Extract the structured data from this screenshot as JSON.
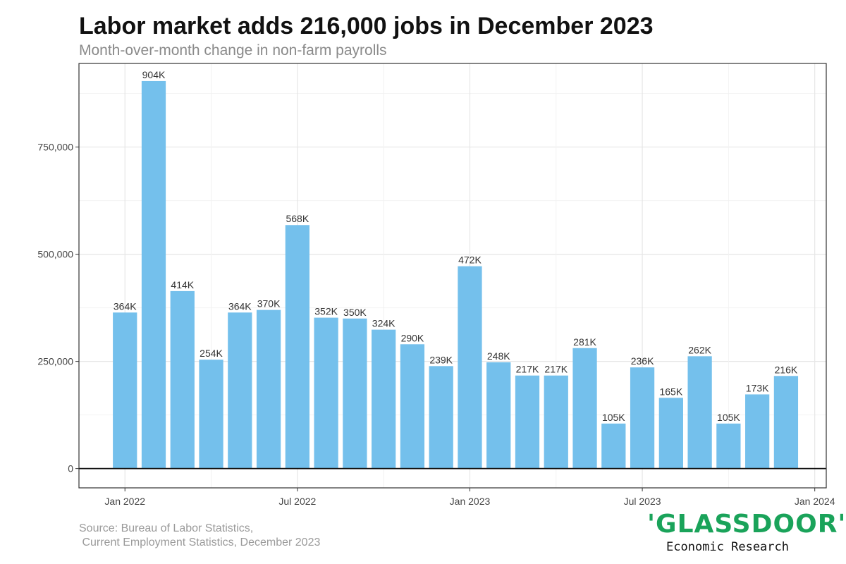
{
  "chart_data": {
    "type": "bar",
    "title": "Labor market adds 216,000 jobs in December 2023",
    "subtitle": "Month-over-month change in non-farm payrolls",
    "xlabel": "",
    "ylabel": "",
    "categories": [
      "2022-01",
      "2022-02",
      "2022-03",
      "2022-04",
      "2022-05",
      "2022-06",
      "2022-07",
      "2022-08",
      "2022-09",
      "2022-10",
      "2022-11",
      "2022-12",
      "2023-01",
      "2023-02",
      "2023-03",
      "2023-04",
      "2023-05",
      "2023-06",
      "2023-07",
      "2023-08",
      "2023-09",
      "2023-10",
      "2023-11",
      "2023-12"
    ],
    "values": [
      364000,
      904000,
      414000,
      254000,
      364000,
      370000,
      568000,
      352000,
      350000,
      324000,
      290000,
      239000,
      472000,
      248000,
      217000,
      217000,
      281000,
      105000,
      236000,
      165000,
      262000,
      105000,
      173000,
      216000
    ],
    "data_labels": [
      "364K",
      "904K",
      "414K",
      "254K",
      "364K",
      "370K",
      "568K",
      "352K",
      "350K",
      "324K",
      "290K",
      "239K",
      "472K",
      "248K",
      "217K",
      "217K",
      "281K",
      "105K",
      "236K",
      "165K",
      "262K",
      "105K",
      "173K",
      "216K"
    ],
    "ylim": [
      -45000,
      945000
    ],
    "y_ticks": [
      0,
      250000,
      500000,
      750000
    ],
    "y_tick_labels": [
      "0",
      "250,000",
      "500,000",
      "750,000"
    ],
    "x_ticks": [
      "2022-01",
      "2022-07",
      "2023-01",
      "2023-07",
      "2024-01"
    ],
    "x_tick_labels": [
      "Jan 2022",
      "Jul 2022",
      "Jan 2023",
      "Jul 2023",
      "Jan 2024"
    ],
    "grid": true,
    "legend": "none",
    "bar_color": "#74c0ec"
  },
  "source": {
    "line1": "Source: Bureau of Labor Statistics,",
    "line2": " Current Employment Statistics, December 2023"
  },
  "logo": {
    "wordmark": "'GLASSDOOR'",
    "tagline": "Economic Research",
    "color": "#1aa35a"
  }
}
